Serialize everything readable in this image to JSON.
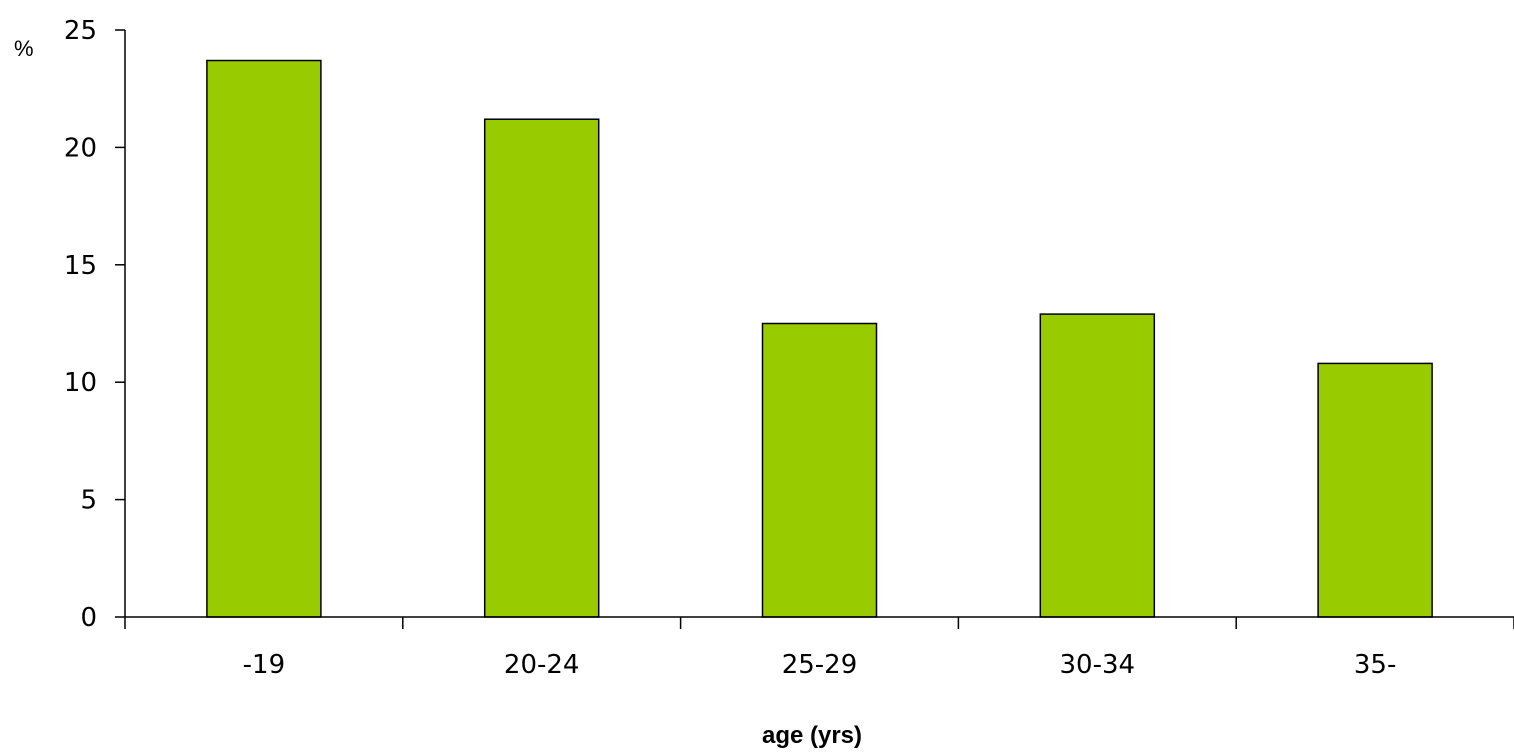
{
  "chart_data": {
    "type": "bar",
    "categories": [
      "-19",
      "20-24",
      "25-29",
      "30-34",
      "35-"
    ],
    "values": [
      23.7,
      21.2,
      12.5,
      12.9,
      10.8
    ],
    "title": "",
    "xlabel": "age (yrs)",
    "ylabel": "%",
    "ylim": [
      0,
      25
    ],
    "yticks": [
      "0",
      "5",
      "10",
      "15",
      "20",
      "25"
    ],
    "grid": false,
    "legend": "none",
    "bar_color": "#99cc00",
    "bar_edge_color": "#000000"
  }
}
